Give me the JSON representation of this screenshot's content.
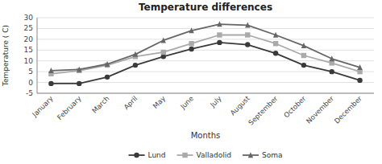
{
  "chart_data": {
    "type": "line",
    "title": "Temperature differences",
    "x_label": "Months",
    "y_label": "Temperature ( C)",
    "categories": [
      "January",
      "February",
      "March",
      "April",
      "May",
      "June",
      "July",
      "August",
      "September",
      "October",
      "November",
      "December"
    ],
    "series": [
      {
        "name": "Lund",
        "color": "#3a3a3a",
        "marker": "circle",
        "values": [
          -0.5,
          -0.5,
          2.5,
          8,
          12,
          15.5,
          18.5,
          17.5,
          13.5,
          8,
          5,
          1
        ]
      },
      {
        "name": "Valladolid",
        "color": "#aaaaaa",
        "marker": "square",
        "values": [
          4,
          5.5,
          8,
          12,
          14,
          18,
          22,
          22,
          18,
          12.5,
          9,
          5
        ]
      },
      {
        "name": "Soma",
        "color": "#666666",
        "marker": "triangle",
        "values": [
          5.5,
          6,
          8.5,
          13,
          19.5,
          24,
          27,
          26.5,
          22,
          17,
          11,
          7
        ]
      }
    ],
    "ylim": [
      -5,
      30
    ],
    "yticks": [
      -5,
      0,
      5,
      10,
      15,
      20,
      25,
      30
    ],
    "grid": true,
    "legend": "bottom"
  }
}
